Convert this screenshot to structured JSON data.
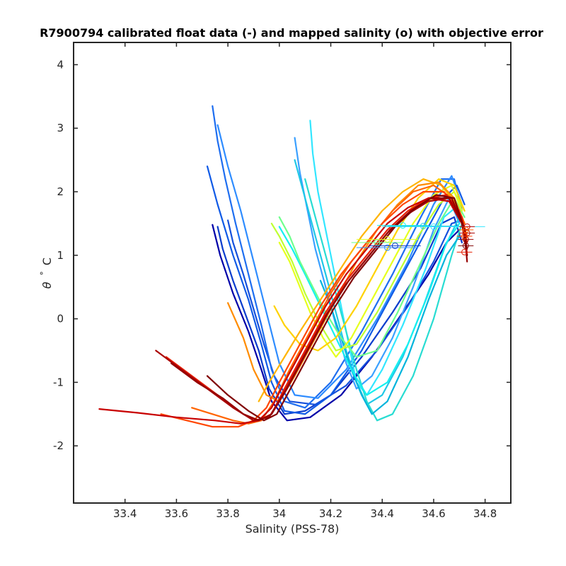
{
  "chart_data": {
    "type": "line",
    "title": "R7900794 calibrated float data (-) and mapped salinity (o) with objective error",
    "xlabel": "Salinity (PSS-78)",
    "ylabel_parts": [
      "θ",
      "°",
      "C"
    ],
    "xlim": [
      33.2,
      34.9
    ],
    "ylim": [
      -2.9,
      4.35
    ],
    "x_ticks": [
      33.4,
      33.6,
      33.8,
      34,
      34.2,
      34.4,
      34.6,
      34.8
    ],
    "x_tick_labels": [
      "33.4",
      "33.6",
      "33.8",
      "34",
      "34.2",
      "34.4",
      "34.6",
      "34.8"
    ],
    "y_ticks": [
      -2,
      -1,
      0,
      1,
      2,
      3,
      4
    ],
    "y_tick_labels": [
      "-2",
      "-1",
      "0",
      "1",
      "2",
      "3",
      "4"
    ],
    "grid": false,
    "legend": "none",
    "colormap": "jet",
    "series": [
      {
        "color": "#0a3ccc",
        "x": [
          33.76,
          33.78,
          33.82,
          33.87,
          33.92,
          33.96,
          34.02,
          34.1,
          34.2,
          34.32,
          34.44,
          34.55,
          34.63,
          34.68,
          34.71
        ],
        "y": [
          1.45,
          1.1,
          0.6,
          0.05,
          -0.5,
          -1.1,
          -1.5,
          -1.45,
          -1.2,
          -0.6,
          0.1,
          0.8,
          1.5,
          1.6,
          1.2
        ]
      },
      {
        "color": "#0000a8",
        "x": [
          33.74,
          33.77,
          33.82,
          33.88,
          33.93,
          33.97,
          34.03,
          34.12,
          34.24,
          34.36,
          34.48,
          34.58,
          34.65,
          34.7
        ],
        "y": [
          1.48,
          1.0,
          0.4,
          -0.2,
          -0.8,
          -1.3,
          -1.6,
          -1.55,
          -1.2,
          -0.6,
          0.1,
          0.7,
          1.2,
          1.4
        ]
      },
      {
        "color": "#1450dc",
        "x": [
          33.8,
          33.82,
          33.86,
          33.9,
          33.94,
          33.98,
          34.04,
          34.14,
          34.26,
          34.38,
          34.5,
          34.6,
          34.67,
          34.71
        ],
        "y": [
          1.55,
          1.2,
          0.7,
          0.15,
          -0.4,
          -0.9,
          -1.3,
          -1.35,
          -1.05,
          -0.5,
          0.2,
          0.9,
          1.5,
          1.55
        ]
      },
      {
        "color": "#1e6ef0",
        "x": [
          33.74,
          33.76,
          33.79,
          33.83,
          33.88,
          33.93,
          33.97,
          34.02,
          34.1,
          34.2,
          34.32,
          34.44,
          34.55,
          34.63,
          34.68,
          34.71
        ],
        "y": [
          3.35,
          2.8,
          2.2,
          1.5,
          0.7,
          -0.1,
          -0.8,
          -1.3,
          -1.4,
          -1.0,
          -0.2,
          0.7,
          1.6,
          2.2,
          2.2,
          1.7
        ]
      },
      {
        "color": "#2e8cff",
        "x": [
          33.76,
          33.8,
          33.85,
          33.9,
          33.95,
          34.0,
          34.06,
          34.15,
          34.26,
          34.38,
          34.5,
          34.6,
          34.67,
          34.71
        ],
        "y": [
          3.05,
          2.4,
          1.7,
          0.9,
          0.1,
          -0.7,
          -1.2,
          -1.25,
          -0.8,
          0.0,
          0.9,
          1.8,
          2.25,
          1.8
        ]
      },
      {
        "color": "#0f5ae6",
        "x": [
          33.72,
          33.76,
          33.82,
          33.88,
          33.93,
          33.97,
          34.02,
          34.1,
          34.2,
          34.32,
          34.44,
          34.56,
          34.64,
          34.69,
          34.72
        ],
        "y": [
          2.4,
          1.8,
          1.0,
          0.3,
          -0.4,
          -1.0,
          -1.45,
          -1.5,
          -1.2,
          -0.5,
          0.4,
          1.3,
          1.9,
          2.1,
          1.8
        ]
      },
      {
        "color": "#3aa0ff",
        "x": [
          34.06,
          34.08,
          34.11,
          34.14,
          34.18,
          34.22,
          34.26,
          34.3,
          34.36,
          34.44,
          34.52,
          34.6,
          34.66,
          34.7
        ],
        "y": [
          2.85,
          2.3,
          1.7,
          1.1,
          0.5,
          -0.1,
          -0.7,
          -1.1,
          -0.9,
          -0.3,
          0.5,
          1.4,
          1.9,
          1.5
        ]
      },
      {
        "color": "#32e6ff",
        "x": [
          34.12,
          34.13,
          34.15,
          34.18,
          34.21,
          34.24,
          34.27,
          34.3,
          34.34,
          34.4,
          34.48,
          34.57,
          34.64,
          34.7
        ],
        "y": [
          3.12,
          2.6,
          2.0,
          1.4,
          0.8,
          0.2,
          -0.4,
          -1.0,
          -1.2,
          -0.8,
          -0.1,
          0.8,
          1.6,
          1.8
        ]
      },
      {
        "color": "#1ec8e6",
        "x": [
          34.06,
          34.1,
          34.14,
          34.18,
          34.22,
          34.26,
          34.3,
          34.34,
          34.4,
          34.48,
          34.56,
          34.64,
          34.7
        ],
        "y": [
          2.5,
          1.9,
          1.3,
          0.7,
          0.1,
          -0.5,
          -1.0,
          -1.35,
          -1.2,
          -0.6,
          0.2,
          1.1,
          1.6
        ]
      },
      {
        "color": "#28dcd2",
        "x": [
          34.1,
          34.14,
          34.18,
          34.22,
          34.26,
          34.3,
          34.34,
          34.38,
          34.44,
          34.52,
          34.6,
          34.67,
          34.71
        ],
        "y": [
          2.2,
          1.6,
          1.0,
          0.4,
          -0.2,
          -0.8,
          -1.3,
          -1.6,
          -1.5,
          -0.9,
          0.0,
          1.0,
          1.5
        ]
      },
      {
        "color": "#00b4dc",
        "x": [
          34.16,
          34.2,
          34.24,
          34.28,
          34.32,
          34.36,
          34.42,
          34.5,
          34.58,
          34.65,
          34.7
        ],
        "y": [
          0.6,
          0.2,
          -0.3,
          -0.8,
          -1.2,
          -1.5,
          -1.3,
          -0.6,
          0.3,
          1.0,
          1.3
        ]
      },
      {
        "color": "#14f0f0",
        "x": [
          34.0,
          34.05,
          34.1,
          34.16,
          34.22,
          34.28,
          34.34,
          34.42,
          34.5,
          34.58,
          34.65,
          34.7
        ],
        "y": [
          1.45,
          1.1,
          0.7,
          0.2,
          -0.3,
          -0.8,
          -1.2,
          -1.0,
          -0.4,
          0.4,
          1.2,
          1.5
        ]
      },
      {
        "color": "#6eff8c",
        "x": [
          34.0,
          34.04,
          34.08,
          34.13,
          34.18,
          34.24,
          34.3,
          34.38,
          34.46,
          34.54,
          34.62,
          34.68,
          34.72
        ],
        "y": [
          1.6,
          1.3,
          0.9,
          0.5,
          0.1,
          -0.3,
          -0.6,
          -0.5,
          0.1,
          0.8,
          1.5,
          1.9,
          1.6
        ]
      },
      {
        "color": "#beff32",
        "x": [
          33.97,
          34.0,
          34.05,
          34.1,
          34.16,
          34.22,
          34.3,
          34.38,
          34.46,
          34.54,
          34.62,
          34.68,
          34.72
        ],
        "y": [
          1.5,
          1.3,
          0.9,
          0.4,
          -0.1,
          -0.5,
          -0.4,
          0.1,
          0.7,
          1.3,
          1.8,
          2.0,
          1.7
        ]
      },
      {
        "color": "#e6ff1e",
        "x": [
          34.0,
          34.04,
          34.08,
          34.12,
          34.17,
          34.22,
          34.28,
          34.36,
          34.44,
          34.52,
          34.6,
          34.67,
          34.71
        ],
        "y": [
          1.2,
          0.9,
          0.5,
          0.1,
          -0.3,
          -0.6,
          -0.3,
          0.3,
          0.9,
          1.5,
          1.95,
          2.1,
          1.7
        ]
      },
      {
        "color": "#ffd200",
        "x": [
          33.98,
          34.02,
          34.08,
          34.15,
          34.22,
          34.3,
          34.38,
          34.46,
          34.54,
          34.62,
          34.68,
          34.72
        ],
        "y": [
          0.2,
          -0.1,
          -0.4,
          -0.5,
          -0.3,
          0.2,
          0.8,
          1.4,
          1.9,
          2.2,
          2.1,
          1.7
        ]
      },
      {
        "color": "#ffb400",
        "x": [
          33.92,
          33.96,
          34.02,
          34.08,
          34.16,
          34.24,
          34.32,
          34.4,
          34.48,
          34.56,
          34.63,
          34.69,
          34.72
        ],
        "y": [
          -1.3,
          -1.0,
          -0.6,
          -0.2,
          0.3,
          0.8,
          1.3,
          1.7,
          2.0,
          2.2,
          2.1,
          1.8,
          1.5
        ]
      },
      {
        "color": "#ff8c00",
        "x": [
          33.8,
          33.86,
          33.9,
          33.95,
          34.0,
          34.06,
          34.14,
          34.22,
          34.3,
          34.38,
          34.46,
          34.54,
          34.62,
          34.68,
          34.72
        ],
        "y": [
          0.25,
          -0.3,
          -0.8,
          -1.2,
          -1.3,
          -0.9,
          -0.3,
          0.3,
          0.9,
          1.4,
          1.8,
          2.1,
          2.15,
          1.9,
          1.5
        ]
      },
      {
        "color": "#ff6400",
        "x": [
          33.66,
          33.74,
          33.82,
          33.88,
          33.93,
          33.98,
          34.04,
          34.12,
          34.2,
          34.28,
          34.36,
          34.44,
          34.52,
          34.6,
          34.67,
          34.72
        ],
        "y": [
          -1.4,
          -1.5,
          -1.6,
          -1.65,
          -1.6,
          -1.3,
          -0.8,
          -0.2,
          0.4,
          0.9,
          1.3,
          1.7,
          2.0,
          2.1,
          1.9,
          1.5
        ]
      },
      {
        "color": "#ff4600",
        "x": [
          33.54,
          33.64,
          33.74,
          33.84,
          33.9,
          33.95,
          34.0,
          34.08,
          34.16,
          34.24,
          34.32,
          34.4,
          34.48,
          34.56,
          34.64,
          34.7,
          34.73
        ],
        "y": [
          -1.5,
          -1.6,
          -1.7,
          -1.7,
          -1.6,
          -1.4,
          -1.0,
          -0.4,
          0.2,
          0.7,
          1.1,
          1.5,
          1.8,
          2.0,
          2.0,
          1.7,
          1.3
        ]
      },
      {
        "color": "#e61e00",
        "x": [
          33.56,
          33.66,
          33.76,
          33.86,
          33.92,
          33.97,
          34.02,
          34.1,
          34.18,
          34.26,
          34.34,
          34.42,
          34.5,
          34.58,
          34.65,
          34.71,
          34.73
        ],
        "y": [
          -0.6,
          -0.9,
          -1.2,
          -1.5,
          -1.6,
          -1.5,
          -1.1,
          -0.5,
          0.1,
          0.6,
          1.0,
          1.4,
          1.7,
          1.9,
          1.95,
          1.6,
          1.2
        ]
      },
      {
        "color": "#c80000",
        "x": [
          33.3,
          33.45,
          33.6,
          33.75,
          33.85,
          33.92,
          33.97,
          34.02,
          34.1,
          34.18,
          34.26,
          34.34,
          34.42,
          34.5,
          34.58,
          34.66,
          34.71,
          34.73
        ],
        "y": [
          -1.42,
          -1.48,
          -1.55,
          -1.6,
          -1.65,
          -1.6,
          -1.4,
          -1.0,
          -0.4,
          0.2,
          0.7,
          1.1,
          1.5,
          1.75,
          1.9,
          1.85,
          1.5,
          1.1
        ]
      },
      {
        "color": "#aa0000",
        "x": [
          33.52,
          33.62,
          33.72,
          33.82,
          33.9,
          33.96,
          34.02,
          34.1,
          34.18,
          34.26,
          34.34,
          34.42,
          34.5,
          34.58,
          34.66,
          34.71,
          34.73
        ],
        "y": [
          -0.5,
          -0.8,
          -1.1,
          -1.4,
          -1.6,
          -1.55,
          -1.15,
          -0.55,
          0.05,
          0.55,
          0.95,
          1.35,
          1.65,
          1.85,
          1.9,
          1.5,
          1.0
        ]
      },
      {
        "color": "#960000",
        "x": [
          33.58,
          33.68,
          33.78,
          33.86,
          33.92,
          33.97,
          34.03,
          34.11,
          34.19,
          34.27,
          34.35,
          34.43,
          34.51,
          34.59,
          34.67,
          34.72,
          34.73
        ],
        "y": [
          -0.7,
          -1.0,
          -1.25,
          -1.5,
          -1.6,
          -1.5,
          -1.1,
          -0.5,
          0.1,
          0.6,
          1.0,
          1.4,
          1.7,
          1.9,
          1.9,
          1.4,
          0.9
        ]
      },
      {
        "color": "#800000",
        "x": [
          33.72,
          33.8,
          33.88,
          33.94,
          33.99,
          34.05,
          34.13,
          34.21,
          34.29,
          34.37,
          34.45,
          34.53,
          34.61,
          34.68,
          34.72,
          34.73
        ],
        "y": [
          -0.9,
          -1.2,
          -1.45,
          -1.6,
          -1.5,
          -1.05,
          -0.45,
          0.15,
          0.65,
          1.05,
          1.45,
          1.75,
          1.95,
          1.9,
          1.4,
          1.0
        ]
      }
    ],
    "mapped_points": [
      {
        "color": "#14f0f0",
        "x": 34.48,
        "y": 1.47,
        "err": 0.1
      },
      {
        "color": "#1ec8e6",
        "x": 34.56,
        "y": 1.46,
        "err": 0.14
      },
      {
        "color": "#32e6ff",
        "x": 34.6,
        "y": 1.45,
        "err": 0.2
      },
      {
        "color": "#e6ff1e",
        "x": 34.42,
        "y": 1.25,
        "err": 0.12
      },
      {
        "color": "#6eff8c",
        "x": 34.38,
        "y": 1.2,
        "err": 0.1
      },
      {
        "color": "#2e8cff",
        "x": 34.42,
        "y": 1.12,
        "err": 0.12
      },
      {
        "color": "#0a3ccc",
        "x": 34.45,
        "y": 1.15,
        "err": 0.1
      },
      {
        "color": "#c80000",
        "x": 34.73,
        "y": 1.45,
        "err": 0.03
      },
      {
        "color": "#aa0000",
        "x": 34.73,
        "y": 1.35,
        "err": 0.03
      },
      {
        "color": "#960000",
        "x": 34.725,
        "y": 1.25,
        "err": 0.03
      },
      {
        "color": "#800000",
        "x": 34.725,
        "y": 1.15,
        "err": 0.03
      },
      {
        "color": "#e61e00",
        "x": 34.72,
        "y": 1.05,
        "err": 0.03
      },
      {
        "color": "#ff4600",
        "x": 34.72,
        "y": 1.3,
        "err": 0.03
      },
      {
        "color": "#ff6400",
        "x": 34.725,
        "y": 1.4,
        "err": 0.03
      }
    ]
  }
}
